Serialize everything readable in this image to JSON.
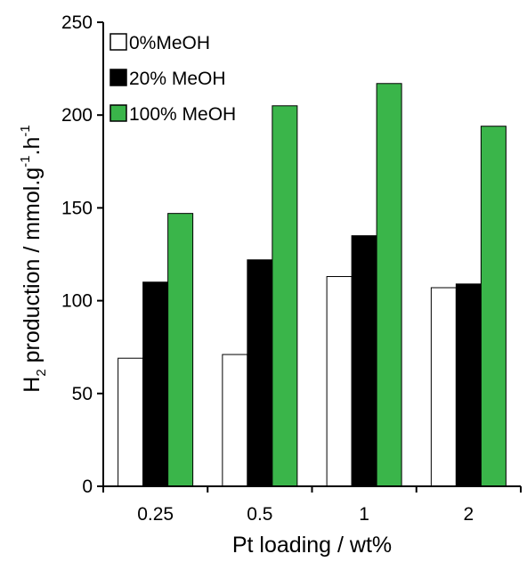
{
  "chart_data": {
    "type": "bar",
    "categories": [
      "0.25",
      "0.5",
      "1",
      "2"
    ],
    "series": [
      {
        "name": "0%MeOH",
        "color": "#ffffff",
        "values": [
          69,
          71,
          113,
          107
        ]
      },
      {
        "name": "20% MeOH",
        "color": "#000000",
        "values": [
          110,
          122,
          135,
          109
        ]
      },
      {
        "name": "100% MeOH",
        "color": "#3ab54a",
        "values": [
          147,
          205,
          217,
          194
        ]
      }
    ],
    "title": "",
    "xlabel": "Pt loading / wt%",
    "ylabel": {
      "prefix": "H",
      "subscript": "2",
      "middle": " production / mmol.g",
      "superscript1": "-1",
      "middle2": ".h",
      "superscript2": "-1"
    },
    "ylim": [
      0,
      250
    ],
    "yticks": [
      0,
      50,
      100,
      150,
      200,
      250
    ],
    "grid": false,
    "legend_position": "top-left"
  }
}
